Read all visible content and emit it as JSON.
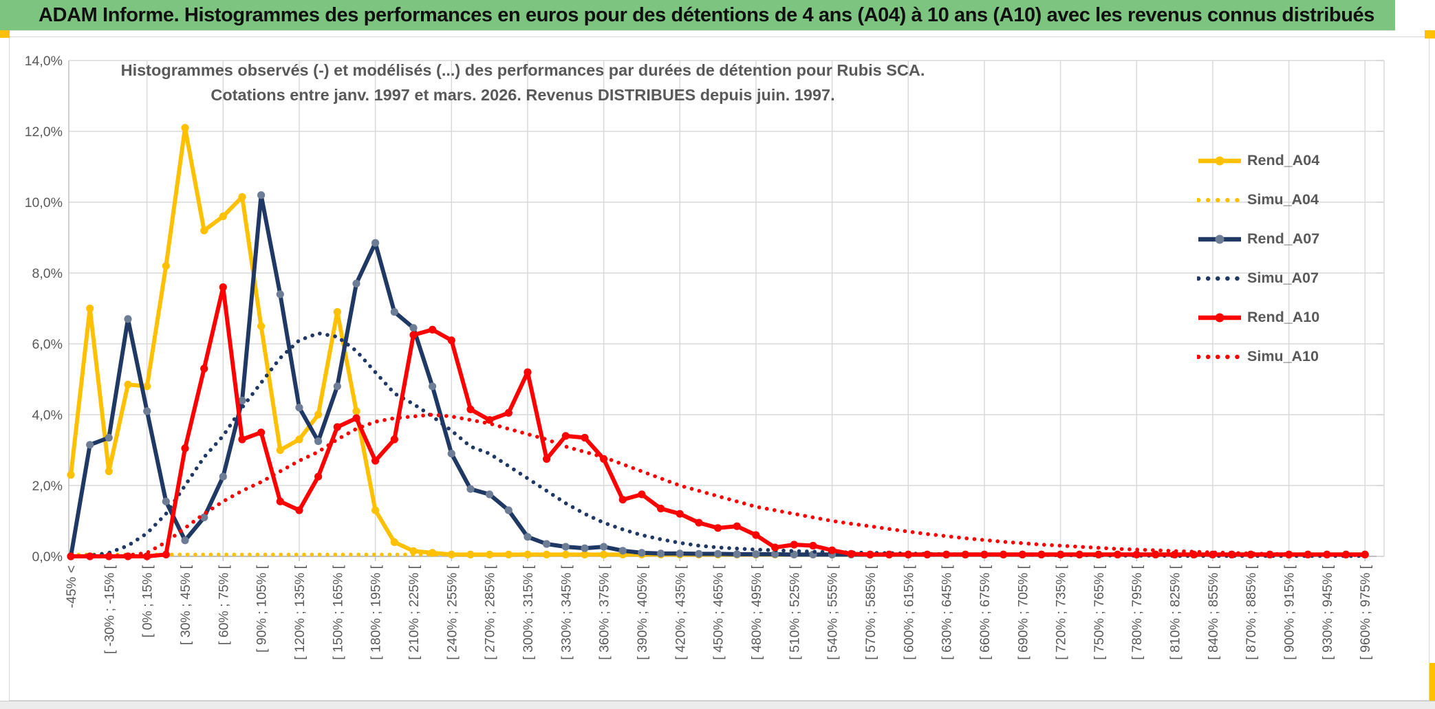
{
  "window": {
    "title": "ADAM Informe. Histogrammes des performances en euros pour des détentions de 4 ans (A04) à 10 ans (A10) avec les revenus connus distribués",
    "colors": {
      "titlebar_green": "#7cc47f",
      "accent_gold": "#ffc000",
      "text_gray": "#595959",
      "grid_gray": "#d9d9d9",
      "axis_gray": "#bfbfbf"
    }
  },
  "chart": {
    "title_line1": "Histogrammes observés (-) et modélisés (...) des performances par durées de détention pour Rubis SCA.",
    "title_line2": "Cotations entre janv. 1997 et mars. 2026. Revenus DISTRIBUES depuis juin. 1997."
  },
  "chart_data": {
    "type": "line",
    "title": "Histogrammes observés (-) et modélisés (...) des performances par durées de détention pour Rubis SCA. Cotations entre janv. 1997 et mars. 2026. Revenus DISTRIBUES depuis juin. 1997.",
    "xlabel": "",
    "ylabel": "",
    "ylim": [
      0,
      14
    ],
    "grid": true,
    "legend_position": "right-inside",
    "bins": 69,
    "bin_width_pct": 15,
    "labels_every": 2,
    "y_tick_labels": [
      "0,0%",
      "2,0%",
      "4,0%",
      "6,0%",
      "8,0%",
      "10,0%",
      "12,0%",
      "14,0%"
    ],
    "x_tick_labels": [
      "-45% <",
      "[ -30% ; -15% [",
      "[ 0% ; 15% [",
      "[ 30% ; 45% [",
      "[ 60% ; 75% [",
      "[ 90% ; 105% [",
      "[ 120% ; 135% [",
      "[ 150% ; 165% [",
      "[ 180% ; 195% [",
      "[ 210% ; 225% [",
      "[ 240% ; 255% [",
      "[ 270% ; 285% [",
      "[ 300% ; 315% [",
      "[ 330% ; 345% [",
      "[ 360% ; 375% [",
      "[ 390% ; 405% [",
      "[ 420% ; 435% [",
      "[ 450% ; 465% [",
      "[ 480% ; 495% [",
      "[ 510% ; 525% [",
      "[ 540% ; 555% [",
      "[ 570% ; 585% [",
      "[ 600% ; 615% [",
      "[ 630% ; 645% [",
      "[ 660% ; 675% [",
      "[ 690% ; 705% [",
      "[ 720% ; 735% [",
      "[ 750% ; 765% [",
      "[ 780% ; 795% [",
      "[ 810% ; 825% [",
      "[ 840% ; 855% [",
      "[ 870% ; 885% [",
      "[ 900% ; 915% [",
      "[ 930% ; 945% [",
      "[ 960% ; 975% ["
    ],
    "series": [
      {
        "name": "Rend_A04",
        "color": "#FFC000",
        "line": "solid",
        "markers": true,
        "marker_color": "#FFC000",
        "values": [
          2.3,
          7.0,
          2.4,
          4.85,
          4.8,
          8.2,
          12.1,
          9.2,
          9.6,
          10.15,
          6.5,
          3.0,
          3.3,
          4.0,
          6.9,
          4.1,
          1.3,
          0.4,
          0.15,
          0.1,
          0.05,
          0.05,
          0.05,
          0.05,
          0.05,
          0.05,
          0.05,
          0.05,
          0.05,
          0.05,
          0.05,
          0.05,
          0.05,
          0.05,
          0.05,
          0.05,
          0.05,
          0.05,
          0.05,
          0.05,
          0.05,
          0.05,
          0.05,
          0.05,
          0.05,
          0.05,
          0.05,
          0.05,
          0.05,
          0.05,
          0.05,
          0.05,
          0.05,
          0.05,
          0.05,
          0.05,
          0.05,
          0.05,
          0.05,
          0.05,
          0.05,
          0.05,
          0.05,
          0.05,
          0.05,
          0.05,
          0.05,
          0.05,
          0.05
        ]
      },
      {
        "name": "Simu_A04",
        "color": "#FFC000",
        "line": "dotted",
        "markers": false,
        "values": [
          0.05,
          0.05,
          0.05,
          0.05,
          0.05,
          0.05,
          0.05,
          0.05,
          0.05,
          0.05,
          0.05,
          0.05,
          0.05,
          0.05,
          0.05,
          0.05,
          0.05,
          0.05,
          0.05,
          0.05,
          0.05,
          0.05,
          0.05,
          0.05,
          0.05,
          0.05,
          0.05,
          0.05,
          0.05,
          0.05,
          0.05,
          0.05,
          0.05,
          0.05,
          0.05,
          0.05,
          0.05,
          0.05,
          0.05,
          0.05,
          0.05,
          0.05,
          0.05,
          0.05,
          0.05,
          0.05,
          0.05,
          0.05,
          0.05,
          0.05,
          0.05,
          0.05,
          0.05,
          0.05,
          0.05,
          0.05,
          0.05,
          0.05,
          0.05,
          0.05,
          0.05,
          0.05,
          0.05,
          0.05,
          0.05,
          0.05,
          0.05,
          0.05,
          0.05
        ]
      },
      {
        "name": "Rend_A07",
        "color": "#1F3864",
        "line": "solid",
        "markers": true,
        "marker_color": "#6D7D96",
        "values": [
          0,
          3.15,
          3.35,
          6.7,
          4.1,
          1.55,
          0.45,
          1.1,
          2.25,
          4.4,
          10.2,
          7.4,
          4.2,
          3.25,
          4.8,
          7.7,
          8.85,
          6.9,
          6.45,
          4.8,
          2.9,
          1.9,
          1.75,
          1.3,
          0.55,
          0.35,
          0.27,
          0.23,
          0.27,
          0.16,
          0.1,
          0.08,
          0.08,
          0.07,
          0.07,
          0.06,
          0.06,
          0.06,
          0.05,
          0.05,
          0.05,
          0.05,
          0.05,
          0.05,
          0.05,
          0.05,
          0.05,
          0.05,
          0.05,
          0.05,
          0.05,
          0.05,
          0.05,
          0.05,
          0.05,
          0.05,
          0.05,
          0.05,
          0.05,
          0.05,
          0.05,
          0.05,
          0.05,
          0.05,
          0.05,
          0.05,
          0.05,
          0.05,
          0.05
        ]
      },
      {
        "name": "Simu_A07",
        "color": "#1F3864",
        "line": "dotted",
        "markers": false,
        "values": [
          0,
          0.02,
          0.1,
          0.3,
          0.65,
          1.2,
          2.0,
          2.8,
          3.4,
          4.2,
          4.9,
          5.6,
          6.1,
          6.3,
          6.2,
          5.8,
          5.2,
          4.6,
          4.3,
          3.95,
          3.55,
          3.1,
          2.9,
          2.55,
          2.2,
          1.85,
          1.5,
          1.2,
          0.95,
          0.76,
          0.6,
          0.48,
          0.38,
          0.3,
          0.25,
          0.22,
          0.19,
          0.17,
          0.15,
          0.13,
          0.12,
          0.11,
          0.1,
          0.09,
          0.08,
          0.07,
          0.06,
          0.06,
          0.05,
          0.05,
          0.04,
          0.04,
          0.03,
          0.03,
          0.03,
          0.02,
          0.02,
          0.02,
          0.01,
          0.01,
          0.01,
          0.01,
          0.01,
          0.01,
          0.01,
          0.01,
          0.01,
          0.01,
          0.01
        ]
      },
      {
        "name": "Rend_A10",
        "color": "#FF0000",
        "line": "solid",
        "markers": true,
        "marker_color": "#FF0000",
        "values": [
          0,
          0,
          0,
          0,
          0,
          0.05,
          3.05,
          5.3,
          7.6,
          3.3,
          3.5,
          1.55,
          1.3,
          2.25,
          3.65,
          3.9,
          2.7,
          3.3,
          6.25,
          6.4,
          6.1,
          4.15,
          3.85,
          4.05,
          5.2,
          2.75,
          3.4,
          3.35,
          2.75,
          1.6,
          1.75,
          1.35,
          1.2,
          0.95,
          0.8,
          0.85,
          0.6,
          0.25,
          0.33,
          0.3,
          0.17,
          0.07,
          0.05,
          0.05,
          0.05,
          0.05,
          0.05,
          0.05,
          0.05,
          0.05,
          0.05,
          0.05,
          0.05,
          0.05,
          0.05,
          0.05,
          0.05,
          0.05,
          0.05,
          0.05,
          0.05,
          0.05,
          0.05,
          0.05,
          0.05,
          0.05,
          0.05,
          0.05,
          0.05
        ]
      },
      {
        "name": "Simu_A10",
        "color": "#FF0000",
        "line": "dotted",
        "markers": false,
        "values": [
          0,
          0,
          0.01,
          0.03,
          0.1,
          0.4,
          0.8,
          1.2,
          1.55,
          1.85,
          2.1,
          2.4,
          2.7,
          2.95,
          3.3,
          3.6,
          3.8,
          3.9,
          3.95,
          4.0,
          3.95,
          3.85,
          3.75,
          3.6,
          3.45,
          3.3,
          3.1,
          2.95,
          2.8,
          2.6,
          2.4,
          2.2,
          2.0,
          1.85,
          1.7,
          1.55,
          1.4,
          1.3,
          1.2,
          1.1,
          1.0,
          0.92,
          0.85,
          0.77,
          0.7,
          0.63,
          0.57,
          0.51,
          0.46,
          0.41,
          0.37,
          0.33,
          0.3,
          0.27,
          0.24,
          0.21,
          0.19,
          0.17,
          0.15,
          0.13,
          0.11,
          0.1,
          0.08,
          0.07,
          0.06,
          0.05,
          0.04,
          0.04,
          0.03
        ]
      }
    ]
  }
}
